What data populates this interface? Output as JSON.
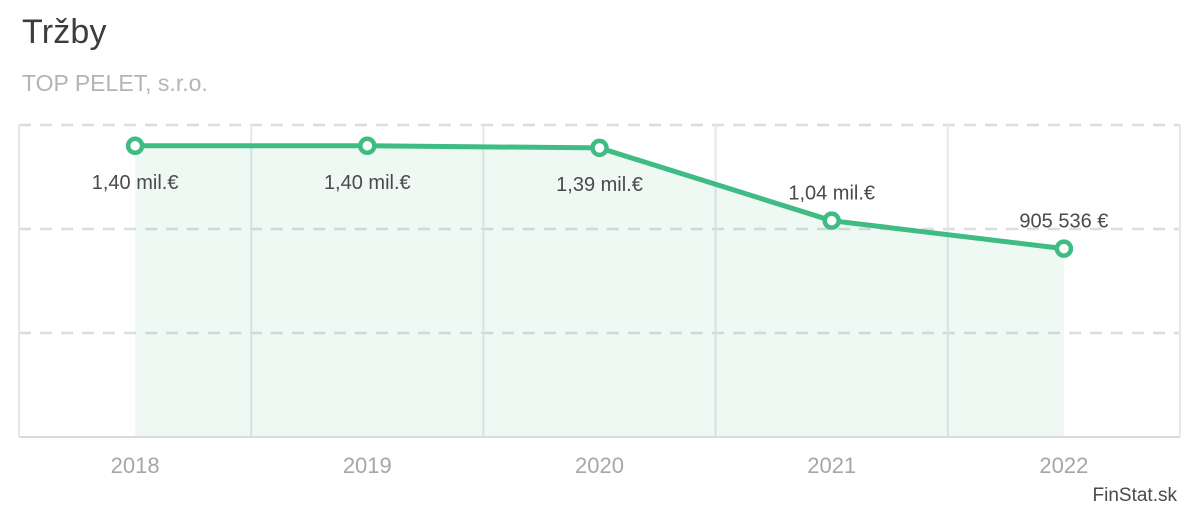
{
  "header": {
    "title": "Tržby",
    "subtitle": "TOP PELET, s.r.o."
  },
  "chart_data": {
    "type": "line",
    "title": "Tržby",
    "subtitle": "TOP PELET, s.r.o.",
    "categories": [
      "2018",
      "2019",
      "2020",
      "2021",
      "2022"
    ],
    "series": [
      {
        "name": "Tržby",
        "values": [
          1400000,
          1400000,
          1390000,
          1040000,
          905536
        ]
      }
    ],
    "point_labels": [
      "1,40 mil.€",
      "1,40 mil.€",
      "1,39 mil.€",
      "1,04 mil.€",
      "905 536 €"
    ],
    "label_positions": [
      "below",
      "below",
      "below",
      "above",
      "above"
    ],
    "ylim": [
      0,
      1500000
    ],
    "y_gridline_step": 500000,
    "grid": "horizontal-dashed",
    "y_axis_labels": "none",
    "legend": "none",
    "colors": {
      "line": "#3fbc83",
      "marker_fill": "#ffffff",
      "area_fill": "rgba(63,188,131,0.085)",
      "gridline": "#dbdee1",
      "divider": "#e2e9ea",
      "plot_border": "#e4e8ea",
      "axis_line": "#d8dadc",
      "x_axis_label": "#a6a6a6",
      "point_label": "#4a4a4a"
    }
  },
  "watermark": {
    "label": "FinStat.sk"
  }
}
